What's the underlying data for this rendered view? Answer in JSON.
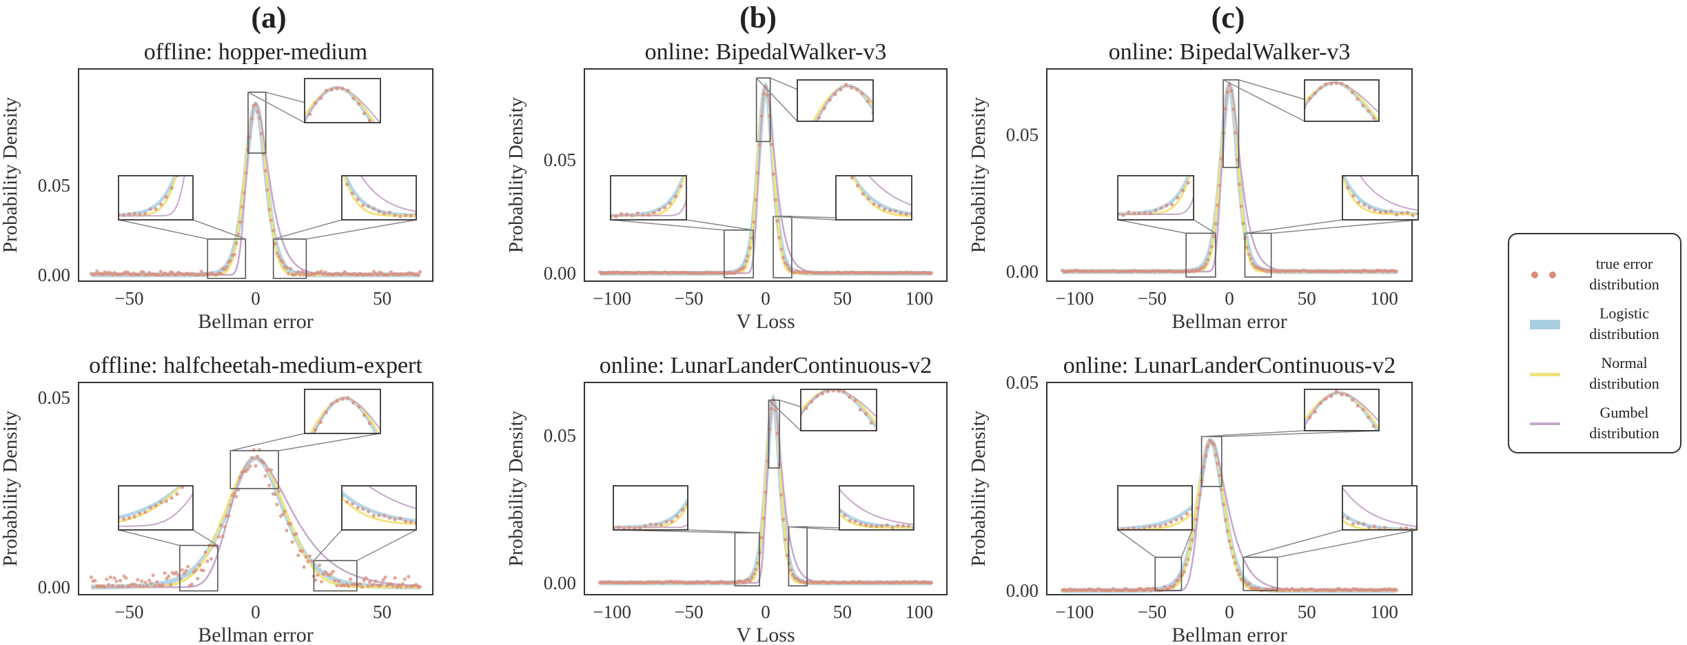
{
  "column_labels": [
    "(a)",
    "(b)",
    "(c)"
  ],
  "legend": {
    "items": [
      {
        "label_line1": "true error",
        "label_line2": "distribution",
        "color": "#d98c7a",
        "kind": "dots"
      },
      {
        "label_line1": "Logistic",
        "label_line2": "distribution",
        "color": "#a8cfe2",
        "kind": "band"
      },
      {
        "label_line1": "Normal",
        "label_line2": "distribution",
        "color": "#f2e27a",
        "kind": "line"
      },
      {
        "label_line1": "Gumbel",
        "label_line2": "distribution",
        "color": "#c6a8cc",
        "kind": "line"
      }
    ]
  },
  "colors": {
    "true": "#d98c7a",
    "logistic": "#a8cfe2",
    "normal": "#f2e27a",
    "gumbel": "#c6a8cc",
    "frame": "#333333",
    "connector": "#888888"
  },
  "chart_data": [
    {
      "type": "line",
      "title": "offline: hopper-medium",
      "xlabel": "Bellman error",
      "ylabel": "Probability Density",
      "xlim": [
        -70,
        70
      ],
      "ylim": [
        -0.0035,
        0.115
      ],
      "xticks": [
        -50,
        0,
        50
      ],
      "yticks": [
        0.0,
        0.05
      ],
      "ytick_labels": [
        "0.00",
        "0.05"
      ],
      "mu": 0,
      "scale": 2.7,
      "peak": 0.095,
      "data_range": [
        -65,
        65
      ],
      "noise": 0.004,
      "zooms": [
        {
          "region": [
            [
              -3,
              4
            ],
            [
              0.068,
              0.102
            ]
          ],
          "direction": "up"
        },
        {
          "region": [
            [
              -19,
              -4
            ],
            [
              -0.002,
              0.02
            ]
          ],
          "direction": "left"
        },
        {
          "region": [
            [
              7,
              20
            ],
            [
              -0.002,
              0.02
            ]
          ],
          "direction": "right"
        }
      ],
      "series": [
        {
          "name": "true error distribution",
          "kind": "dots"
        },
        {
          "name": "Logistic distribution",
          "kind": "logistic"
        },
        {
          "name": "Normal distribution",
          "kind": "normal"
        },
        {
          "name": "Gumbel distribution",
          "kind": "gumbel"
        }
      ]
    },
    {
      "type": "line",
      "title": "online: BipedalWalker-v3",
      "xlabel": "V Loss",
      "ylabel": "Probability Density",
      "xlim": [
        -118,
        118
      ],
      "ylim": [
        -0.0035,
        0.09
      ],
      "xticks": [
        -100,
        -50,
        0,
        50,
        100
      ],
      "yticks": [
        0.0,
        0.05
      ],
      "ytick_labels": [
        "0.00",
        "0.05"
      ],
      "mu": 0,
      "scale": 3.2,
      "peak": 0.082,
      "data_range": [
        -108,
        108
      ],
      "noise": 0.001,
      "zooms": [
        {
          "region": [
            [
              -6,
              3
            ],
            [
              0.058,
              0.086
            ]
          ],
          "direction": "up"
        },
        {
          "region": [
            [
              -27,
              -8
            ],
            [
              -0.002,
              0.019
            ]
          ],
          "direction": "left"
        },
        {
          "region": [
            [
              5,
              17
            ],
            [
              -0.002,
              0.025
            ]
          ],
          "direction": "right"
        }
      ],
      "series": [
        {
          "name": "true error distribution",
          "kind": "dots"
        },
        {
          "name": "Logistic distribution",
          "kind": "logistic"
        },
        {
          "name": "Normal distribution",
          "kind": "normal"
        },
        {
          "name": "Gumbel distribution",
          "kind": "gumbel"
        }
      ]
    },
    {
      "type": "line",
      "title": "online: BipedalWalker-v3",
      "xlabel": "Bellman error",
      "ylabel": "Probability Density",
      "xlim": [
        -118,
        118
      ],
      "ylim": [
        -0.0035,
        0.074
      ],
      "xticks": [
        -100,
        -50,
        0,
        50,
        100
      ],
      "yticks": [
        0.0,
        0.05
      ],
      "ytick_labels": [
        "0.00",
        "0.05"
      ],
      "mu": 0,
      "scale": 3.6,
      "peak": 0.068,
      "data_range": [
        -108,
        108
      ],
      "noise": 0.0008,
      "zooms": [
        {
          "region": [
            [
              -4,
              6
            ],
            [
              0.038,
              0.07
            ]
          ],
          "direction": "up"
        },
        {
          "region": [
            [
              -28,
              -9
            ],
            [
              -0.002,
              0.014
            ]
          ],
          "direction": "left"
        },
        {
          "region": [
            [
              10,
              27
            ],
            [
              -0.002,
              0.014
            ]
          ],
          "direction": "right"
        }
      ],
      "series": [
        {
          "name": "true error distribution",
          "kind": "dots"
        },
        {
          "name": "Logistic distribution",
          "kind": "logistic"
        },
        {
          "name": "Normal distribution",
          "kind": "normal"
        },
        {
          "name": "Gumbel distribution",
          "kind": "gumbel"
        }
      ]
    },
    {
      "type": "line",
      "title": "offline: halfcheetah-medium-expert",
      "xlabel": "Bellman error",
      "ylabel": "Probability Density",
      "xlim": [
        -70,
        70
      ],
      "ylim": [
        -0.002,
        0.054
      ],
      "xticks": [
        -50,
        0,
        50
      ],
      "yticks": [
        0.0,
        0.05
      ],
      "ytick_labels": [
        "0.00",
        "0.05"
      ],
      "mu": 0,
      "scale": 7.5,
      "peak": 0.034,
      "data_range": [
        -65,
        65
      ],
      "noise": 0.006,
      "zooms": [
        {
          "region": [
            [
              -10,
              9
            ],
            [
              0.026,
              0.036
            ]
          ],
          "direction": "up"
        },
        {
          "region": [
            [
              -30,
              -15
            ],
            [
              -0.001,
              0.011
            ]
          ],
          "direction": "left"
        },
        {
          "region": [
            [
              23,
              40
            ],
            [
              -0.001,
              0.007
            ]
          ],
          "direction": "right"
        }
      ],
      "series": [
        {
          "name": "true error distribution",
          "kind": "dots"
        },
        {
          "name": "Logistic distribution",
          "kind": "logistic"
        },
        {
          "name": "Normal distribution",
          "kind": "normal"
        },
        {
          "name": "Gumbel distribution",
          "kind": "gumbel"
        }
      ]
    },
    {
      "type": "line",
      "title": "online: LunarLanderContinuous-v2",
      "xlabel": "V Loss",
      "ylabel": "Probability Density",
      "xlim": [
        -118,
        118
      ],
      "ylim": [
        -0.004,
        0.068
      ],
      "xticks": [
        -100,
        -50,
        0,
        50,
        100
      ],
      "yticks": [
        0.0,
        0.05
      ],
      "ytick_labels": [
        "0.00",
        "0.05"
      ],
      "mu": 5,
      "scale": 3.0,
      "peak": 0.062,
      "data_range": [
        -108,
        108
      ],
      "noise": 0.001,
      "zooms": [
        {
          "region": [
            [
              2,
              9
            ],
            [
              0.039,
              0.062
            ]
          ],
          "direction": "up"
        },
        {
          "region": [
            [
              -20,
              -4
            ],
            [
              -0.001,
              0.017
            ]
          ],
          "direction": "left"
        },
        {
          "region": [
            [
              15,
              27
            ],
            [
              -0.001,
              0.019
            ]
          ],
          "direction": "right"
        }
      ],
      "series": [
        {
          "name": "true error distribution",
          "kind": "dots"
        },
        {
          "name": "Logistic distribution",
          "kind": "logistic"
        },
        {
          "name": "Normal distribution",
          "kind": "normal"
        },
        {
          "name": "Gumbel distribution",
          "kind": "gumbel"
        }
      ]
    },
    {
      "type": "line",
      "title": "online: LunarLanderContinuous-v2",
      "xlabel": "Bellman error",
      "ylabel": "Probability Density",
      "xlim": [
        -118,
        118
      ],
      "ylim": [
        -0.001,
        0.05
      ],
      "xticks": [
        -100,
        -50,
        0,
        50,
        100
      ],
      "yticks": [
        0.0,
        0.05
      ],
      "ytick_labels": [
        "0.00",
        "0.05"
      ],
      "mu": -12,
      "scale": 5.5,
      "peak": 0.036,
      "data_range": [
        -108,
        108
      ],
      "noise": 0.001,
      "zooms": [
        {
          "region": [
            [
              -18,
              -5
            ],
            [
              0.025,
              0.037
            ]
          ],
          "direction": "up"
        },
        {
          "region": [
            [
              -48,
              -31
            ],
            [
              0.0,
              0.008
            ]
          ],
          "direction": "left"
        },
        {
          "region": [
            [
              9,
              31
            ],
            [
              0.0,
              0.008
            ]
          ],
          "direction": "right"
        }
      ],
      "series": [
        {
          "name": "true error distribution",
          "kind": "dots"
        },
        {
          "name": "Logistic distribution",
          "kind": "logistic"
        },
        {
          "name": "Normal distribution",
          "kind": "normal"
        },
        {
          "name": "Gumbel distribution",
          "kind": "gumbel"
        }
      ]
    }
  ]
}
